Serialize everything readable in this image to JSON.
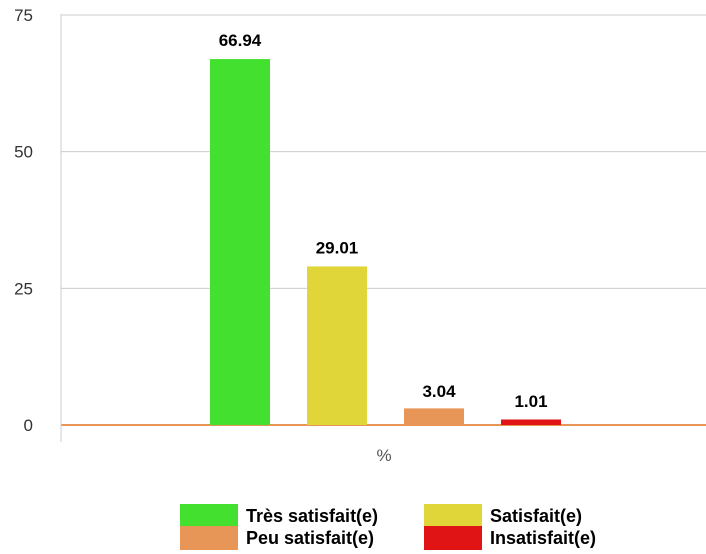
{
  "chart_data": {
    "type": "bar",
    "categories": [
      "%"
    ],
    "series": [
      {
        "name": "Très satisfait(e)",
        "values": [
          66.94
        ],
        "color": "#44e02f"
      },
      {
        "name": "Satisfait(e)",
        "values": [
          29.01
        ],
        "color": "#e0d63a"
      },
      {
        "name": "Peu satisfait(e)",
        "values": [
          3.04
        ],
        "color": "#e89657"
      },
      {
        "name": "Insatisfait(e)",
        "values": [
          1.01
        ],
        "color": "#e01414"
      }
    ],
    "ylim": [
      0,
      75
    ],
    "yticks": [
      0,
      25,
      50,
      75
    ],
    "grid": true,
    "legend": "bottom",
    "data_labels": [
      "66.94",
      "29.01",
      "3.04",
      "1.01"
    ]
  }
}
